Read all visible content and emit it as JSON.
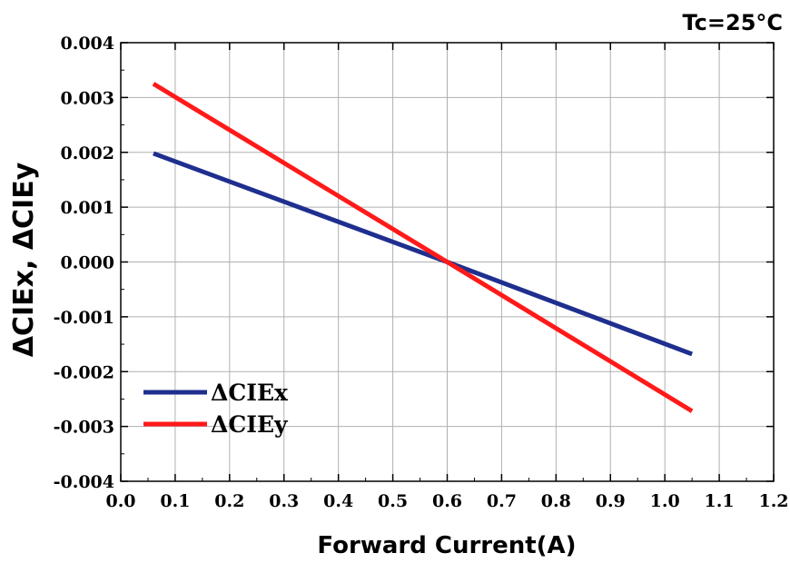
{
  "chart_data": {
    "type": "line",
    "annotation": "Tc=25°C",
    "xlabel": "Forward Current(A)",
    "ylabel": "ΔCIEx, ΔCIEy",
    "xlim": [
      0.0,
      1.2
    ],
    "ylim": [
      -0.004,
      0.004
    ],
    "x_ticks": [
      "0.0",
      "0.1",
      "0.2",
      "0.3",
      "0.4",
      "0.5",
      "0.6",
      "0.7",
      "0.8",
      "0.9",
      "1.0",
      "1.1",
      "1.2"
    ],
    "y_ticks": [
      "-0.004",
      "-0.003",
      "-0.002",
      "-0.001",
      "0.000",
      "0.001",
      "0.002",
      "0.003",
      "0.004"
    ],
    "grid": true,
    "legend_position": "bottom-left",
    "series": [
      {
        "name": "ΔCIEx",
        "color": "#1f2f8f",
        "x": [
          0.06,
          0.6,
          1.05
        ],
        "y": [
          0.00198,
          0.0,
          -0.00168
        ]
      },
      {
        "name": "ΔCIEy",
        "color": "#ff1a1a",
        "x": [
          0.06,
          0.6,
          1.05
        ],
        "y": [
          0.00325,
          0.0,
          -0.00272
        ]
      }
    ]
  }
}
